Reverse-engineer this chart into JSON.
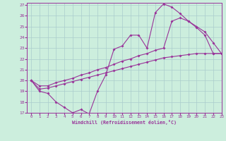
{
  "xlabel": "Windchill (Refroidissement éolien,°C)",
  "bg_color": "#cceedd",
  "grid_color": "#aacccc",
  "line_color": "#993399",
  "xlim": [
    -0.5,
    23
  ],
  "ylim": [
    17,
    27.2
  ],
  "curve1_x": [
    0,
    1,
    2,
    3,
    4,
    5,
    6,
    7,
    8,
    9,
    10,
    11,
    12,
    13,
    14,
    15,
    16,
    17,
    18,
    19,
    20,
    21,
    22,
    23
  ],
  "curve1_y": [
    20.0,
    19.0,
    18.8,
    18.0,
    17.5,
    17.0,
    17.3,
    16.9,
    19.0,
    20.5,
    22.9,
    23.2,
    24.2,
    24.2,
    23.0,
    26.3,
    27.1,
    26.8,
    26.2,
    25.5,
    24.9,
    24.2,
    22.5,
    22.5
  ],
  "curve2_x": [
    0,
    1,
    2,
    3,
    4,
    5,
    6,
    7,
    8,
    9,
    10,
    11,
    12,
    13,
    14,
    15,
    16,
    17,
    18,
    19,
    20,
    21,
    22,
    23
  ],
  "curve2_y": [
    20.0,
    19.5,
    19.5,
    19.8,
    20.0,
    20.2,
    20.5,
    20.7,
    21.0,
    21.2,
    21.5,
    21.8,
    22.0,
    22.3,
    22.5,
    22.8,
    23.0,
    25.5,
    25.8,
    25.5,
    25.0,
    24.5,
    23.5,
    22.5
  ],
  "curve3_x": [
    0,
    1,
    2,
    3,
    4,
    5,
    6,
    7,
    8,
    9,
    10,
    11,
    12,
    13,
    14,
    15,
    16,
    17,
    18,
    19,
    20,
    21,
    22,
    23
  ],
  "curve3_y": [
    20.0,
    19.2,
    19.3,
    19.5,
    19.7,
    19.9,
    20.1,
    20.3,
    20.5,
    20.7,
    20.9,
    21.1,
    21.3,
    21.5,
    21.7,
    21.9,
    22.1,
    22.2,
    22.3,
    22.4,
    22.5,
    22.5,
    22.5,
    22.5
  ],
  "ytick_labels": [
    "17",
    "18",
    "19",
    "20",
    "21",
    "22",
    "23",
    "24",
    "25",
    "26",
    "27"
  ],
  "xtick_labels": [
    "0",
    "1",
    "2",
    "3",
    "4",
    "5",
    "6",
    "7",
    "8",
    "9",
    "10",
    "11",
    "12",
    "13",
    "14",
    "15",
    "16",
    "17",
    "18",
    "19",
    "20",
    "21",
    "22",
    "23"
  ]
}
